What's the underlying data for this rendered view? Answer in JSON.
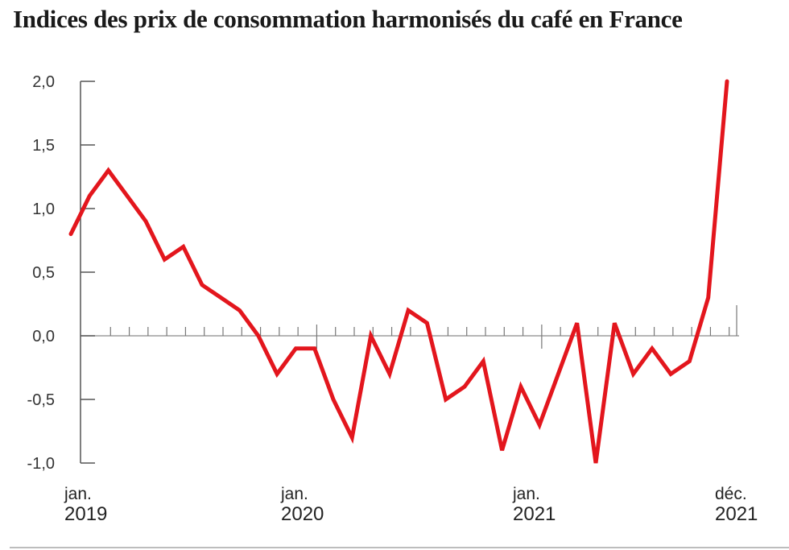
{
  "chart_data": {
    "type": "line",
    "title": "Indices des prix de consommation harmonisés du café en France",
    "xlabel": "",
    "ylabel": "",
    "ylim": [
      -1.0,
      2.0
    ],
    "yticks": [
      2.0,
      1.5,
      1.0,
      0.5,
      0.0,
      -0.5,
      -1.0
    ],
    "ytick_labels": [
      "2,0",
      "1,5",
      "1,0",
      "0,5",
      "0,0",
      "-0,5",
      "-1,0"
    ],
    "x": [
      "2019-01",
      "2019-02",
      "2019-03",
      "2019-04",
      "2019-05",
      "2019-06",
      "2019-07",
      "2019-08",
      "2019-09",
      "2019-10",
      "2019-11",
      "2019-12",
      "2020-01",
      "2020-02",
      "2020-03",
      "2020-04",
      "2020-05",
      "2020-06",
      "2020-07",
      "2020-08",
      "2020-09",
      "2020-10",
      "2020-11",
      "2020-12",
      "2021-01",
      "2021-02",
      "2021-03",
      "2021-04",
      "2021-05",
      "2021-06",
      "2021-07",
      "2021-08",
      "2021-09",
      "2021-10",
      "2021-11",
      "2021-12"
    ],
    "xtick_labels": [
      {
        "month": "jan.",
        "year": "2019",
        "x": "2019-01"
      },
      {
        "month": "jan.",
        "year": "2020",
        "x": "2020-01"
      },
      {
        "month": "jan.",
        "year": "2021",
        "x": "2021-01"
      },
      {
        "month": "déc.",
        "year": "2021",
        "x": "2021-12"
      }
    ],
    "series": [
      {
        "color": "#e3161d",
        "values": [
          0.8,
          1.1,
          1.3,
          1.1,
          0.9,
          0.6,
          0.7,
          0.4,
          0.3,
          0.2,
          0.0,
          -0.3,
          -0.1,
          -0.1,
          -0.5,
          -0.8,
          0.0,
          -0.3,
          0.2,
          0.1,
          -0.5,
          -0.4,
          -0.2,
          -0.9,
          -0.4,
          -0.7,
          -0.3,
          0.1,
          -1.0,
          0.1,
          -0.3,
          -0.1,
          -0.3,
          -0.2,
          0.3,
          2.0
        ]
      }
    ],
    "grid": false,
    "legend": "none"
  }
}
